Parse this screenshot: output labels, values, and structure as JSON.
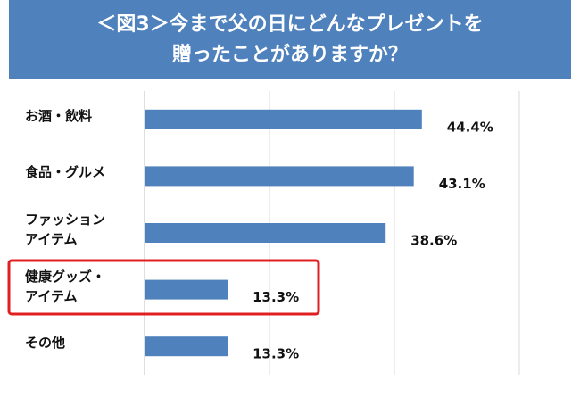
{
  "chart_data": {
    "type": "barh",
    "title": [
      "＜図3＞今まで父の日にどんなプレゼントを",
      "贈ったことがありますか？"
    ],
    "categories": [
      "お酒・飲料",
      "食品・グルメ",
      "ファッション\nアイテム",
      "健康グッズ・\nアイテム",
      "その他"
    ],
    "values": [
      44.4,
      43.1,
      38.6,
      13.3,
      13.3
    ],
    "value_labels": [
      "44.4%",
      "43.1%",
      "38.6%",
      "13.3%",
      "13.3%"
    ],
    "color": "#4f81bd",
    "xlim": [
      0,
      62
    ],
    "xticks": [
      0,
      20,
      40,
      60
    ],
    "grid": true
  }
}
